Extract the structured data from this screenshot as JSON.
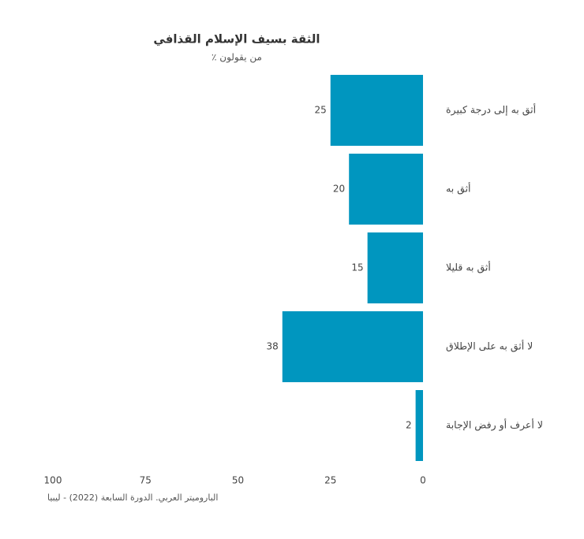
{
  "chart_data": {
    "type": "barh",
    "title": "الثقة بسيف الإسلام القذافي",
    "subtitle": "٪ من يقولون",
    "categories": [
      "أثق به إلى درجة كبيرة",
      "أثق به",
      "أثق به قليلا",
      "لا أثق به على الإطلاق",
      "لا أعرف أو رفض الإجابة"
    ],
    "values": [
      25,
      20,
      15,
      38,
      2
    ],
    "color": "#0096bf",
    "xlim": [
      0,
      100
    ],
    "xticks": [
      0,
      25,
      50,
      75,
      100
    ],
    "x_reversed": true,
    "grid": false,
    "source": "الباروميتر العربي. الدورة السابعة (2022) - ليبيا"
  }
}
